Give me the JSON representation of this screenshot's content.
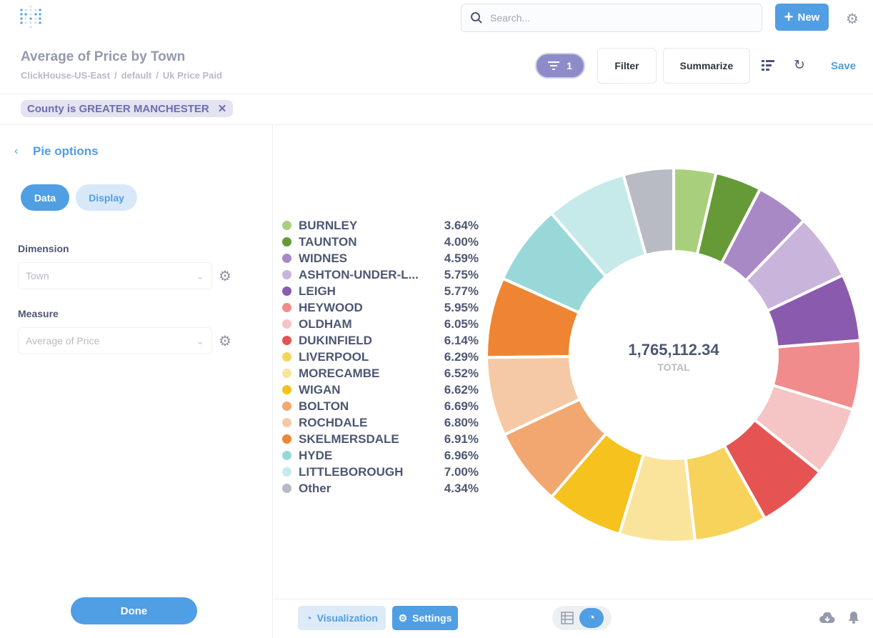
{
  "topbar": {
    "search_placeholder": "Search...",
    "new_label": "New"
  },
  "header": {
    "title": "Average of Price by Town",
    "breadcrumbs": [
      "ClickHouse-US-East",
      "default",
      "Uk Price Paid"
    ],
    "filter_count": "1",
    "filter_label": "Filter",
    "summarize_label": "Summarize",
    "save_label": "Save"
  },
  "filter_pill": "County is GREATER MANCHESTER",
  "sidebar": {
    "heading": "Pie options",
    "tabs": [
      "Data",
      "Display"
    ],
    "dimension_label": "Dimension",
    "dimension_value": "Town",
    "measure_label": "Measure",
    "measure_value": "Average of Price",
    "done_label": "Done"
  },
  "chart_data": {
    "type": "pie",
    "style": "donut",
    "total_value": "1,765,112.34",
    "total_label": "TOTAL",
    "legend_placement": "left",
    "slices": [
      {
        "label": "BURNLEY",
        "percent": "3.64%",
        "value": 3.64,
        "color": "#a8d07c"
      },
      {
        "label": "TAUNTON",
        "percent": "4.00%",
        "value": 4.0,
        "color": "#659a37"
      },
      {
        "label": "WIDNES",
        "percent": "4.59%",
        "value": 4.59,
        "color": "#a989c5"
      },
      {
        "label": "ASHTON-UNDER-L...",
        "percent": "5.75%",
        "value": 5.75,
        "color": "#c9b4dc"
      },
      {
        "label": "LEIGH",
        "percent": "5.77%",
        "value": 5.77,
        "color": "#8a5aaf"
      },
      {
        "label": "HEYWOOD",
        "percent": "5.95%",
        "value": 5.95,
        "color": "#f08c8c"
      },
      {
        "label": "OLDHAM",
        "percent": "6.05%",
        "value": 6.05,
        "color": "#f5c4c4"
      },
      {
        "label": "DUKINFIELD",
        "percent": "6.14%",
        "value": 6.14,
        "color": "#e55353"
      },
      {
        "label": "LIVERPOOL",
        "percent": "6.29%",
        "value": 6.29,
        "color": "#f7d35c"
      },
      {
        "label": "MORECAMBE",
        "percent": "6.52%",
        "value": 6.52,
        "color": "#fae49c"
      },
      {
        "label": "WIGAN",
        "percent": "6.62%",
        "value": 6.62,
        "color": "#f5c21e"
      },
      {
        "label": "BOLTON",
        "percent": "6.69%",
        "value": 6.69,
        "color": "#f1a76f"
      },
      {
        "label": "ROCHDALE",
        "percent": "6.80%",
        "value": 6.8,
        "color": "#f5c9a5"
      },
      {
        "label": "SKELMERSDALE",
        "percent": "6.91%",
        "value": 6.91,
        "color": "#ef8532"
      },
      {
        "label": "HYDE",
        "percent": "6.96%",
        "value": 6.96,
        "color": "#98d8d8"
      },
      {
        "label": "LITTLEBOROUGH",
        "percent": "7.00%",
        "value": 7.0,
        "color": "#c6eaea"
      },
      {
        "label": "Other",
        "percent": "4.34%",
        "value": 4.34,
        "color": "#b8bbc4"
      }
    ]
  },
  "footer": {
    "visualization_label": "Visualization",
    "settings_label": "Settings"
  }
}
